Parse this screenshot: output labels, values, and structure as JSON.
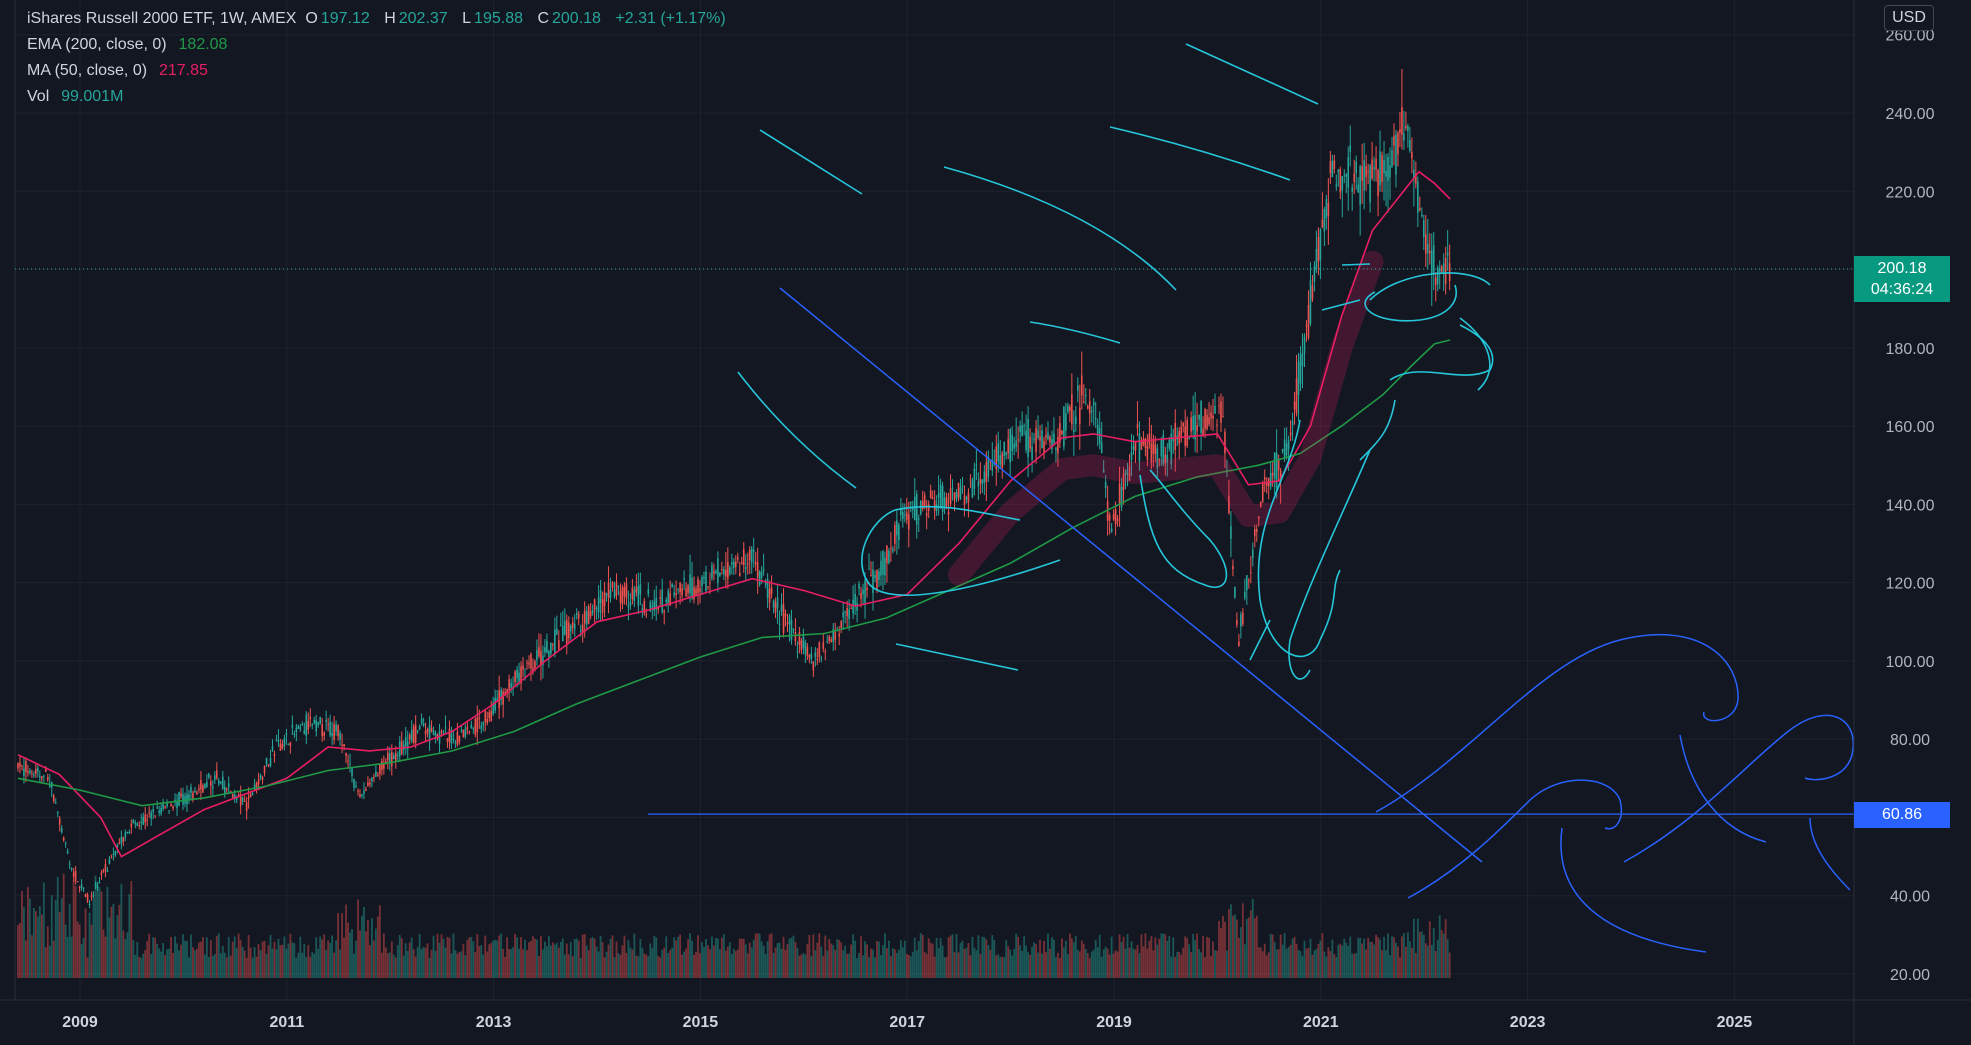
{
  "header": {
    "symbol_title": "iShares Russell 2000 ETF, 1W, AMEX",
    "ohlc": [
      {
        "label": "O",
        "value": "197.12"
      },
      {
        "label": "H",
        "value": "202.37"
      },
      {
        "label": "L",
        "value": "195.88"
      },
      {
        "label": "C",
        "value": "200.18"
      }
    ],
    "change": "+2.31 (+1.17%)"
  },
  "indicators": [
    {
      "label": "EMA (200, close, 0)",
      "value": "182.08",
      "color": "#1f9a46"
    },
    {
      "label": "MA (50, close, 0)",
      "value": "217.85",
      "color": "#e91e63"
    },
    {
      "label": "Vol",
      "value": "99.001M",
      "color": "#26a69a"
    }
  ],
  "currency": "USD",
  "last_price": {
    "price": "200.18",
    "countdown": "04:36:24"
  },
  "horizontal_level": {
    "label": "60.86",
    "value": 60.86
  },
  "colors": {
    "up": "#26a69a",
    "down": "#ef5350",
    "ema": "#1f9a46",
    "ma": "#e91e63",
    "drawing_cyan": "#26c6da",
    "drawing_blue": "#2962ff"
  },
  "chart_data": {
    "type": "line",
    "ylim": [
      14,
      262
    ],
    "yticks": [
      "20.00",
      "40.00",
      "60.00",
      "80.00",
      "100.00",
      "120.00",
      "140.00",
      "160.00",
      "180.00",
      "200.00",
      "220.00",
      "240.00",
      "260.00"
    ],
    "xlim": [
      2008.35,
      2026.0
    ],
    "xticks": [
      "2009",
      "2011",
      "2013",
      "2015",
      "2017",
      "2019",
      "2021",
      "2023",
      "2025"
    ],
    "series": [
      {
        "key": "price",
        "x": [
          2008.4,
          2008.7,
          2008.9,
          2009.1,
          2009.2,
          2009.5,
          2009.8,
          2010.1,
          2010.3,
          2010.6,
          2010.9,
          2011.2,
          2011.5,
          2011.7,
          2011.9,
          2012.3,
          2012.6,
          2012.9,
          2013.2,
          2013.5,
          2013.8,
          2014.2,
          2014.5,
          2014.8,
          2015.2,
          2015.5,
          2015.7,
          2016.1,
          2016.5,
          2016.8,
          2016.95,
          2017.2,
          2017.5,
          2017.8,
          2018.1,
          2018.4,
          2018.7,
          2018.85,
          2018.97,
          2019.2,
          2019.5,
          2019.8,
          2020.05,
          2020.2,
          2020.45,
          2020.7,
          2020.9,
          2021.1,
          2021.3,
          2021.5,
          2021.7,
          2021.85,
          2021.95,
          2022.05,
          2022.15,
          2022.25
        ],
        "values": [
          73,
          70,
          48,
          38,
          45,
          58,
          62,
          66,
          70,
          63,
          78,
          84,
          82,
          65,
          72,
          83,
          80,
          85,
          95,
          102,
          110,
          118,
          115,
          117,
          123,
          127,
          115,
          100,
          115,
          125,
          137,
          140,
          142,
          150,
          158,
          155,
          168,
          160,
          132,
          155,
          154,
          160,
          165,
          105,
          145,
          155,
          192,
          225,
          225,
          222,
          230,
          235,
          215,
          205,
          198,
          200
        ]
      },
      {
        "key": "ma",
        "x": [
          2008.4,
          2008.8,
          2009.2,
          2009.4,
          2009.8,
          2010.2,
          2010.6,
          2011.0,
          2011.4,
          2011.8,
          2012.2,
          2012.6,
          2013.0,
          2013.5,
          2014.0,
          2014.5,
          2015.0,
          2015.5,
          2016.0,
          2016.5,
          2017.0,
          2017.5,
          2018.0,
          2018.5,
          2018.8,
          2019.2,
          2019.6,
          2020.0,
          2020.3,
          2020.6,
          2020.9,
          2021.2,
          2021.5,
          2021.8,
          2021.95,
          2022.1,
          2022.25
        ],
        "values": [
          76,
          71,
          60,
          50,
          56,
          62,
          66,
          70,
          78,
          77,
          78,
          82,
          89,
          100,
          110,
          113,
          117,
          121,
          118,
          114,
          117,
          130,
          146,
          157,
          158,
          156,
          157,
          158,
          145,
          146,
          160,
          188,
          210,
          220,
          225,
          222,
          218
        ]
      },
      {
        "key": "ema",
        "x": [
          2008.4,
          2009.0,
          2009.6,
          2010.2,
          2010.8,
          2011.4,
          2012.0,
          2012.6,
          2013.2,
          2013.8,
          2014.4,
          2015.0,
          2015.6,
          2016.2,
          2016.8,
          2017.4,
          2018.0,
          2018.6,
          2019.2,
          2019.8,
          2020.4,
          2020.8,
          2021.2,
          2021.6,
          2021.9,
          2022.1,
          2022.25
        ],
        "values": [
          70,
          67,
          63,
          65,
          68,
          72,
          74,
          77,
          82,
          89,
          95,
          101,
          106,
          107,
          111,
          118,
          125,
          134,
          142,
          147,
          150,
          153,
          160,
          168,
          176,
          181,
          182
        ]
      }
    ]
  }
}
